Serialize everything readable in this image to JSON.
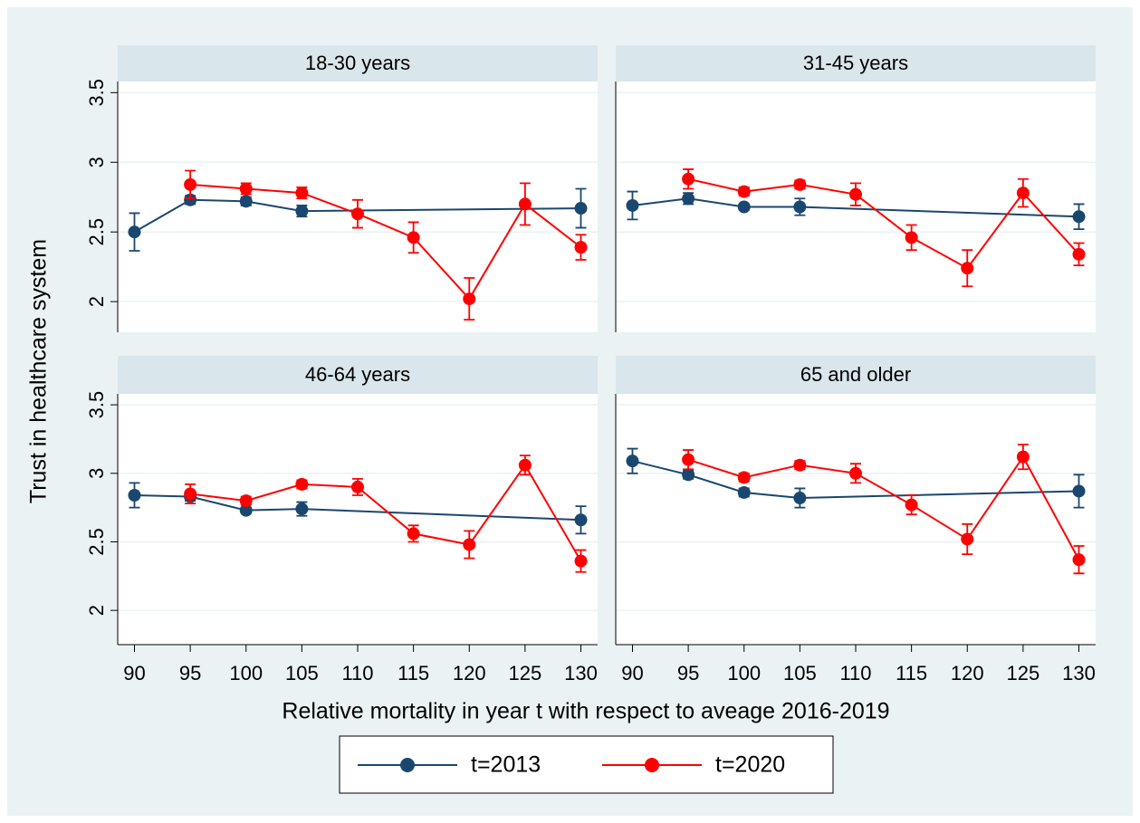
{
  "chart_data": [
    {
      "type": "line",
      "title": "18-30 years",
      "xlim": [
        88.5,
        131.5
      ],
      "ylim": [
        1.78,
        3.58
      ],
      "yticks": [
        2,
        2.5,
        3,
        3.5
      ],
      "series": [
        {
          "name": "t=2013",
          "color": "#1a476f",
          "x": [
            90,
            95,
            100,
            105,
            130
          ],
          "values": [
            2.5,
            2.73,
            2.72,
            2.65,
            2.67
          ],
          "errors": [
            0.135,
            0.03,
            0.03,
            0.04,
            0.14
          ]
        },
        {
          "name": "t=2020",
          "color": "#ff0000",
          "x": [
            95,
            100,
            105,
            110,
            115,
            120,
            125,
            130
          ],
          "values": [
            2.84,
            2.81,
            2.78,
            2.63,
            2.46,
            2.02,
            2.7,
            2.39
          ],
          "errors": [
            0.1,
            0.04,
            0.04,
            0.1,
            0.11,
            0.15,
            0.15,
            0.09
          ]
        }
      ]
    },
    {
      "type": "line",
      "title": "31-45 years",
      "xlim": [
        88.5,
        131.5
      ],
      "ylim": [
        1.78,
        3.58
      ],
      "yticks": [
        2,
        2.5,
        3,
        3.5
      ],
      "series": [
        {
          "color": "#1a476f",
          "x": [
            90,
            95,
            100,
            105,
            130
          ],
          "values": [
            2.69,
            2.74,
            2.68,
            2.68,
            2.61
          ],
          "errors": [
            0.1,
            0.04,
            0.02,
            0.06,
            0.09
          ]
        },
        {
          "color": "#ff0000",
          "x": [
            95,
            100,
            105,
            110,
            115,
            120,
            125,
            130
          ],
          "values": [
            2.88,
            2.79,
            2.84,
            2.77,
            2.46,
            2.24,
            2.78,
            2.34
          ],
          "errors": [
            0.07,
            0.03,
            0.03,
            0.08,
            0.09,
            0.13,
            0.1,
            0.08
          ]
        }
      ]
    },
    {
      "type": "line",
      "title": "46-64 years",
      "xlim": [
        88.5,
        131.5
      ],
      "ylim": [
        1.75,
        3.58
      ],
      "yticks": [
        2,
        2.5,
        3,
        3.5
      ],
      "xticks": [
        90,
        95,
        100,
        105,
        110,
        115,
        120,
        125,
        130
      ],
      "series": [
        {
          "color": "#1a476f",
          "x": [
            90,
            95,
            100,
            105,
            130
          ],
          "values": [
            2.84,
            2.83,
            2.73,
            2.74,
            2.66
          ],
          "errors": [
            0.09,
            0.03,
            0.02,
            0.05,
            0.1
          ]
        },
        {
          "color": "#ff0000",
          "x": [
            95,
            100,
            105,
            110,
            115,
            120,
            125,
            130
          ],
          "values": [
            2.85,
            2.8,
            2.92,
            2.9,
            2.56,
            2.48,
            3.06,
            2.36
          ],
          "errors": [
            0.07,
            0.03,
            0.03,
            0.06,
            0.06,
            0.1,
            0.07,
            0.08
          ]
        }
      ]
    },
    {
      "type": "line",
      "title": "65 and older",
      "xlim": [
        88.5,
        131.5
      ],
      "ylim": [
        1.75,
        3.58
      ],
      "yticks": [
        2,
        2.5,
        3,
        3.5
      ],
      "xticks": [
        90,
        95,
        100,
        105,
        110,
        115,
        120,
        125,
        130
      ],
      "series": [
        {
          "color": "#1a476f",
          "x": [
            90,
            95,
            100,
            105,
            130
          ],
          "values": [
            3.09,
            2.99,
            2.86,
            2.82,
            2.87
          ],
          "errors": [
            0.09,
            0.03,
            0.03,
            0.07,
            0.12
          ]
        },
        {
          "color": "#ff0000",
          "x": [
            95,
            100,
            105,
            110,
            115,
            120,
            125,
            130
          ],
          "values": [
            3.1,
            2.97,
            3.06,
            3.0,
            2.77,
            2.52,
            3.12,
            2.37
          ],
          "errors": [
            0.07,
            0.03,
            0.03,
            0.07,
            0.07,
            0.11,
            0.09,
            0.1
          ]
        }
      ]
    }
  ],
  "y_label": "Trust in healthcare system",
  "x_label": "Relative mortality in year t with respect to aveage 2016-2019"
}
